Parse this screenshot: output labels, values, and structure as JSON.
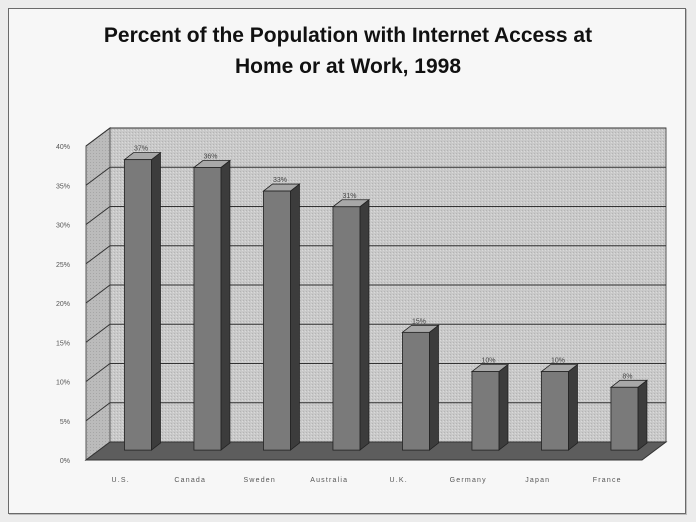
{
  "chart_data": {
    "type": "bar",
    "title_line1": "Percent of the Population with Internet Access at",
    "title_line2": "Home or at Work, 1998",
    "categories": [
      "U.S.",
      "Canada",
      "Sweden",
      "Australia",
      "U.K.",
      "Germany",
      "Japan",
      "France"
    ],
    "values": [
      37,
      36,
      33,
      31,
      15,
      10,
      10,
      8
    ],
    "value_labels": [
      "37%",
      "36%",
      "33%",
      "31%",
      "15%",
      "10%",
      "10%",
      "8%"
    ],
    "ylim": [
      0,
      40
    ],
    "y_ticks": [
      0,
      5,
      10,
      15,
      20,
      25,
      30,
      35,
      40
    ],
    "y_tick_labels": [
      "0%",
      "5%",
      "10%",
      "15%",
      "20%",
      "25%",
      "30%",
      "35%",
      "40%"
    ],
    "grid": true,
    "style": "3d-column",
    "colors": {
      "bar_front": "#7a7a7a",
      "bar_side": "#3c3c3c",
      "bar_top": "#a8a8a8",
      "back_wall": "#c9c9c9",
      "side_wall": "#b9b9b9",
      "floor": "#5d5d5d"
    }
  }
}
